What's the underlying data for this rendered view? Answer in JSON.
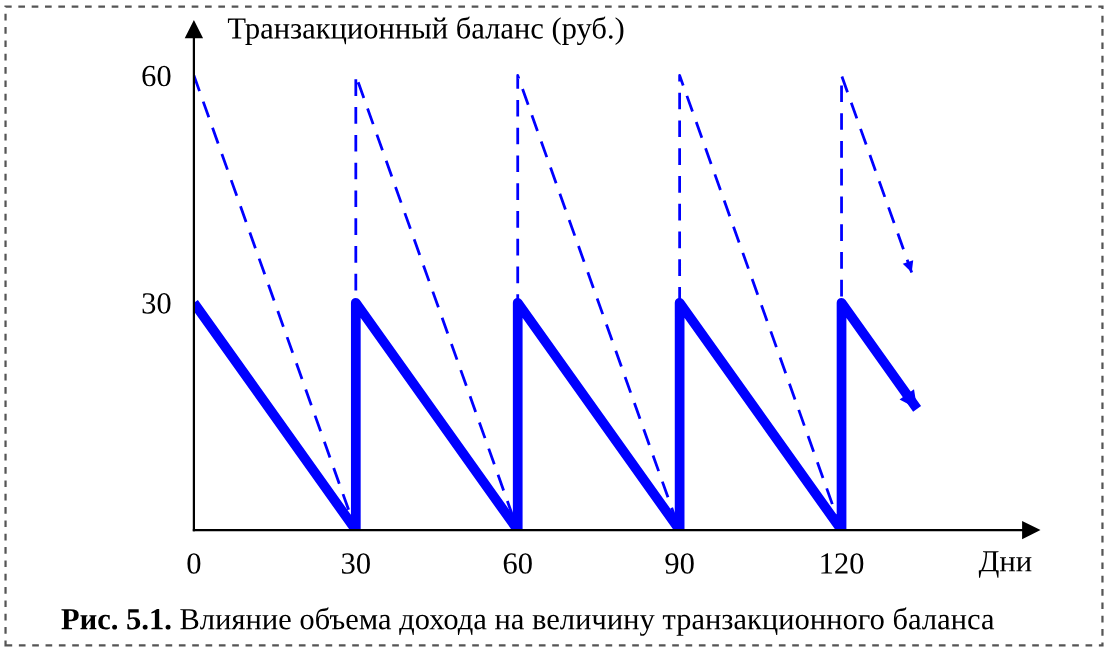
{
  "chart_data": {
    "type": "line",
    "ylabel": "Транзакционный баланс (руб.)",
    "xlabel": "Дни",
    "annotations": [
      "Рис. 5.1.",
      "Влияние объема дохода на величину транзакционного баланса"
    ],
    "xlim": [
      0,
      155
    ],
    "ylim": [
      0,
      66
    ],
    "xticks": [
      0,
      30,
      60,
      90,
      120
    ],
    "yticks": [
      30,
      60
    ],
    "grid": false,
    "legend": false,
    "marker": "none",
    "series": [
      {
        "color": "#0000ff",
        "line_style": "solid",
        "x": [
          0,
          30,
          30,
          60,
          60,
          90,
          90,
          120,
          120,
          134
        ],
        "values": [
          30,
          0,
          30,
          0,
          30,
          0,
          30,
          0,
          30,
          16
        ]
      },
      {
        "color": "#0000ff",
        "line_style": "dashed",
        "x": [
          0,
          30,
          30,
          60,
          60,
          90,
          90,
          120,
          120,
          133
        ],
        "values": [
          60,
          0,
          60,
          0,
          60,
          0,
          60,
          0,
          60,
          34
        ]
      }
    ]
  }
}
